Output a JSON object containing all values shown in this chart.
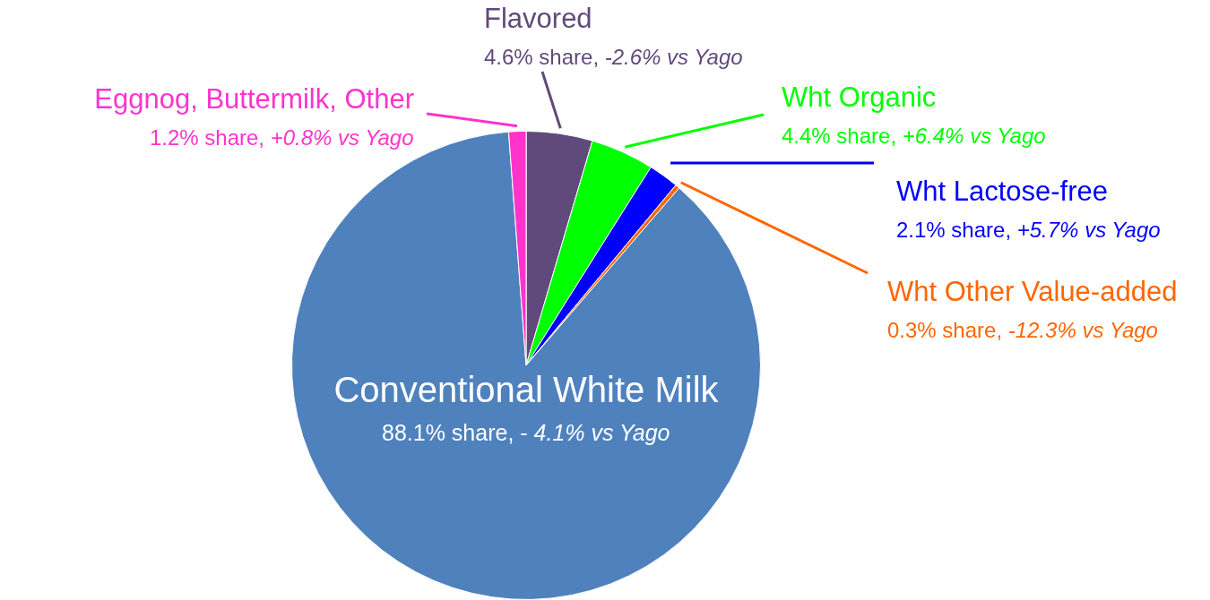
{
  "chart_data": {
    "type": "pie",
    "categories": [
      "Flavored",
      "Wht Organic",
      "Wht Lactose-free",
      "Wht Other Value-added",
      "Conventional White Milk",
      "Eggnog, Buttermilk, Other"
    ],
    "values": [
      4.6,
      4.4,
      2.1,
      0.3,
      88.1,
      1.2
    ],
    "colors": [
      "#604a7b",
      "#00ff00",
      "#0000ff",
      "#ff6600",
      "#4f81bd",
      "#ff33cc"
    ],
    "value_labels": [
      "4.6% share, -2.6% vs Yago",
      "4.4% share, +6.4% vs Yago",
      "2.1% share, +5.7% vs Yago",
      "0.3% share, -12.3% vs Yago",
      "88.1% share, - 4.1% vs Yago",
      "1.2% share, +0.8% vs Yago"
    ],
    "legend": false
  }
}
